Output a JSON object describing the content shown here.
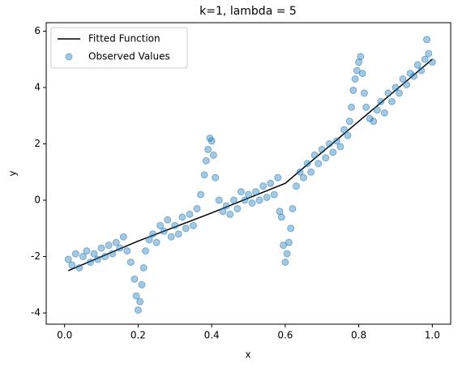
{
  "chart_data": {
    "type": "scatter-line",
    "title": "k=1, lambda = 5",
    "x_label": "x",
    "y_label": "y",
    "xlim": [
      -0.05,
      1.05
    ],
    "ylim": [
      -4.4,
      6.3
    ],
    "xticks": [
      {
        "value": 0,
        "label": "0.0"
      },
      {
        "value": 0.2,
        "label": "0.2"
      },
      {
        "value": 0.4,
        "label": "0.4"
      },
      {
        "value": 0.6,
        "label": "0.6"
      },
      {
        "value": 0.8,
        "label": "0.8"
      },
      {
        "value": 1,
        "label": "1.0"
      }
    ],
    "yticks": [
      -4,
      -2,
      0,
      2,
      4,
      6
    ],
    "legend": "upper left",
    "series": [
      {
        "name": "Fitted Function",
        "kind": "line",
        "color": "#000000",
        "x": [
          0.01,
          0.2,
          0.4,
          0.6,
          0.8,
          1.0
        ],
        "values": [
          -2.5,
          -1.45,
          -0.45,
          0.6,
          2.8,
          5.0
        ]
      },
      {
        "name": "Observed Values",
        "kind": "scatter",
        "color": "#1f77b4",
        "x": [
          0.01,
          0.02,
          0.03,
          0.04,
          0.05,
          0.06,
          0.07,
          0.08,
          0.09,
          0.1,
          0.11,
          0.12,
          0.13,
          0.14,
          0.15,
          0.16,
          0.17,
          0.18,
          0.19,
          0.195,
          0.2,
          0.205,
          0.21,
          0.215,
          0.22,
          0.23,
          0.24,
          0.25,
          0.26,
          0.27,
          0.28,
          0.29,
          0.3,
          0.31,
          0.32,
          0.33,
          0.34,
          0.35,
          0.36,
          0.37,
          0.38,
          0.385,
          0.39,
          0.395,
          0.4,
          0.405,
          0.41,
          0.42,
          0.43,
          0.44,
          0.45,
          0.46,
          0.47,
          0.48,
          0.49,
          0.5,
          0.51,
          0.52,
          0.53,
          0.54,
          0.55,
          0.56,
          0.57,
          0.58,
          0.585,
          0.59,
          0.595,
          0.6,
          0.605,
          0.61,
          0.615,
          0.62,
          0.63,
          0.64,
          0.65,
          0.66,
          0.67,
          0.68,
          0.69,
          0.7,
          0.71,
          0.72,
          0.73,
          0.74,
          0.75,
          0.76,
          0.77,
          0.775,
          0.78,
          0.785,
          0.79,
          0.795,
          0.8,
          0.805,
          0.81,
          0.815,
          0.82,
          0.83,
          0.84,
          0.85,
          0.86,
          0.87,
          0.88,
          0.89,
          0.9,
          0.91,
          0.92,
          0.93,
          0.94,
          0.95,
          0.96,
          0.97,
          0.98,
          0.985,
          0.99,
          1.0
        ],
        "values": [
          -2.1,
          -2.3,
          -1.9,
          -2.4,
          -2.0,
          -1.8,
          -2.2,
          -1.9,
          -2.1,
          -1.7,
          -2.0,
          -1.6,
          -1.9,
          -1.5,
          -1.7,
          -1.3,
          -1.8,
          -2.2,
          -2.8,
          -3.4,
          -3.9,
          -3.6,
          -3.0,
          -2.4,
          -1.8,
          -1.4,
          -1.2,
          -1.5,
          -0.9,
          -1.1,
          -0.7,
          -1.3,
          -0.9,
          -1.2,
          -0.6,
          -1.0,
          -0.5,
          -0.9,
          -0.3,
          0.2,
          0.9,
          1.4,
          1.8,
          2.2,
          2.1,
          1.6,
          0.8,
          0.0,
          -0.4,
          -0.2,
          -0.5,
          0.0,
          -0.3,
          0.3,
          0.0,
          0.2,
          -0.1,
          0.3,
          0.0,
          0.5,
          0.1,
          0.6,
          0.2,
          0.8,
          -0.4,
          -0.6,
          -1.6,
          -2.2,
          -1.9,
          -1.5,
          -1.0,
          -0.3,
          0.5,
          1.0,
          0.8,
          1.3,
          1.0,
          1.6,
          1.3,
          1.8,
          1.5,
          2.0,
          1.7,
          2.1,
          1.9,
          2.5,
          2.3,
          2.8,
          3.3,
          3.9,
          4.3,
          4.6,
          4.9,
          5.1,
          4.5,
          3.8,
          3.3,
          2.9,
          2.8,
          3.2,
          3.5,
          3.1,
          3.8,
          3.5,
          4.0,
          3.8,
          4.3,
          4.1,
          4.5,
          4.4,
          4.8,
          4.6,
          5.0,
          5.7,
          5.2,
          4.9
        ]
      }
    ]
  }
}
